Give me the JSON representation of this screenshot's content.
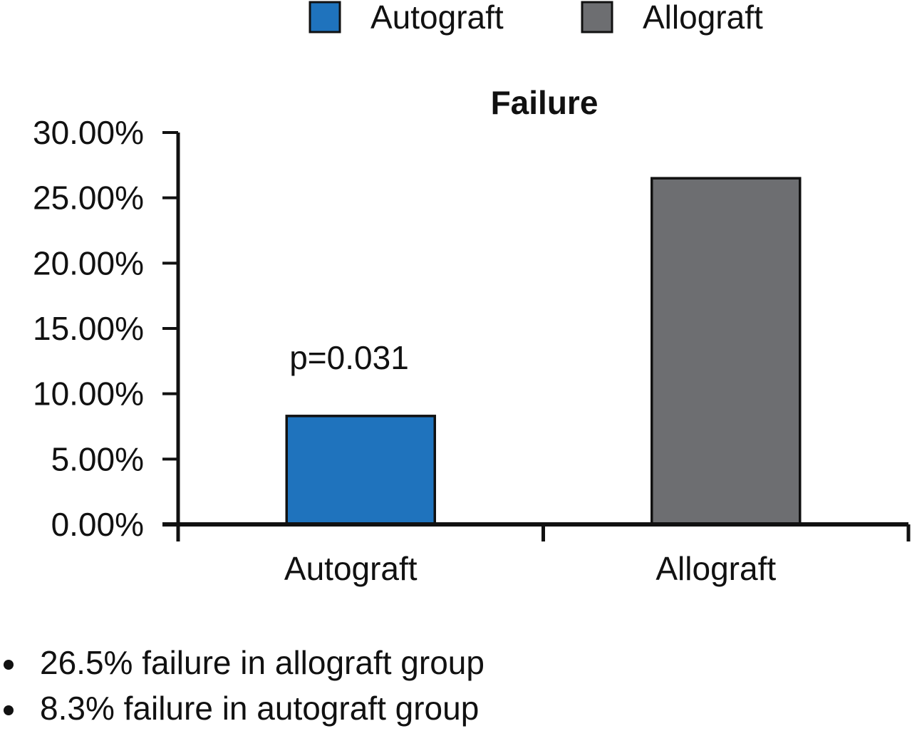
{
  "chart_data": {
    "type": "bar",
    "title": "Failure",
    "categories": [
      "Autograft",
      "Allograft"
    ],
    "values": [
      8.3,
      26.5
    ],
    "colors": [
      "#1f73bd",
      "#6d6e71"
    ],
    "legend": [
      {
        "label": "Autograft",
        "color": "#1f73bd"
      },
      {
        "label": "Allograft",
        "color": "#6d6e71"
      }
    ],
    "legend_position": "top",
    "ylim": [
      0,
      30
    ],
    "yticks": [
      0,
      5,
      10,
      15,
      20,
      25,
      30
    ],
    "ytick_labels": [
      "0.00%",
      "5.00%",
      "10.00%",
      "15.00%",
      "20.00%",
      "25.00%",
      "30.00%"
    ],
    "annotation": "p=0.031",
    "grid": false
  },
  "notes": [
    "26.5% failure in allograft group",
    "8.3% failure in autograft group"
  ]
}
